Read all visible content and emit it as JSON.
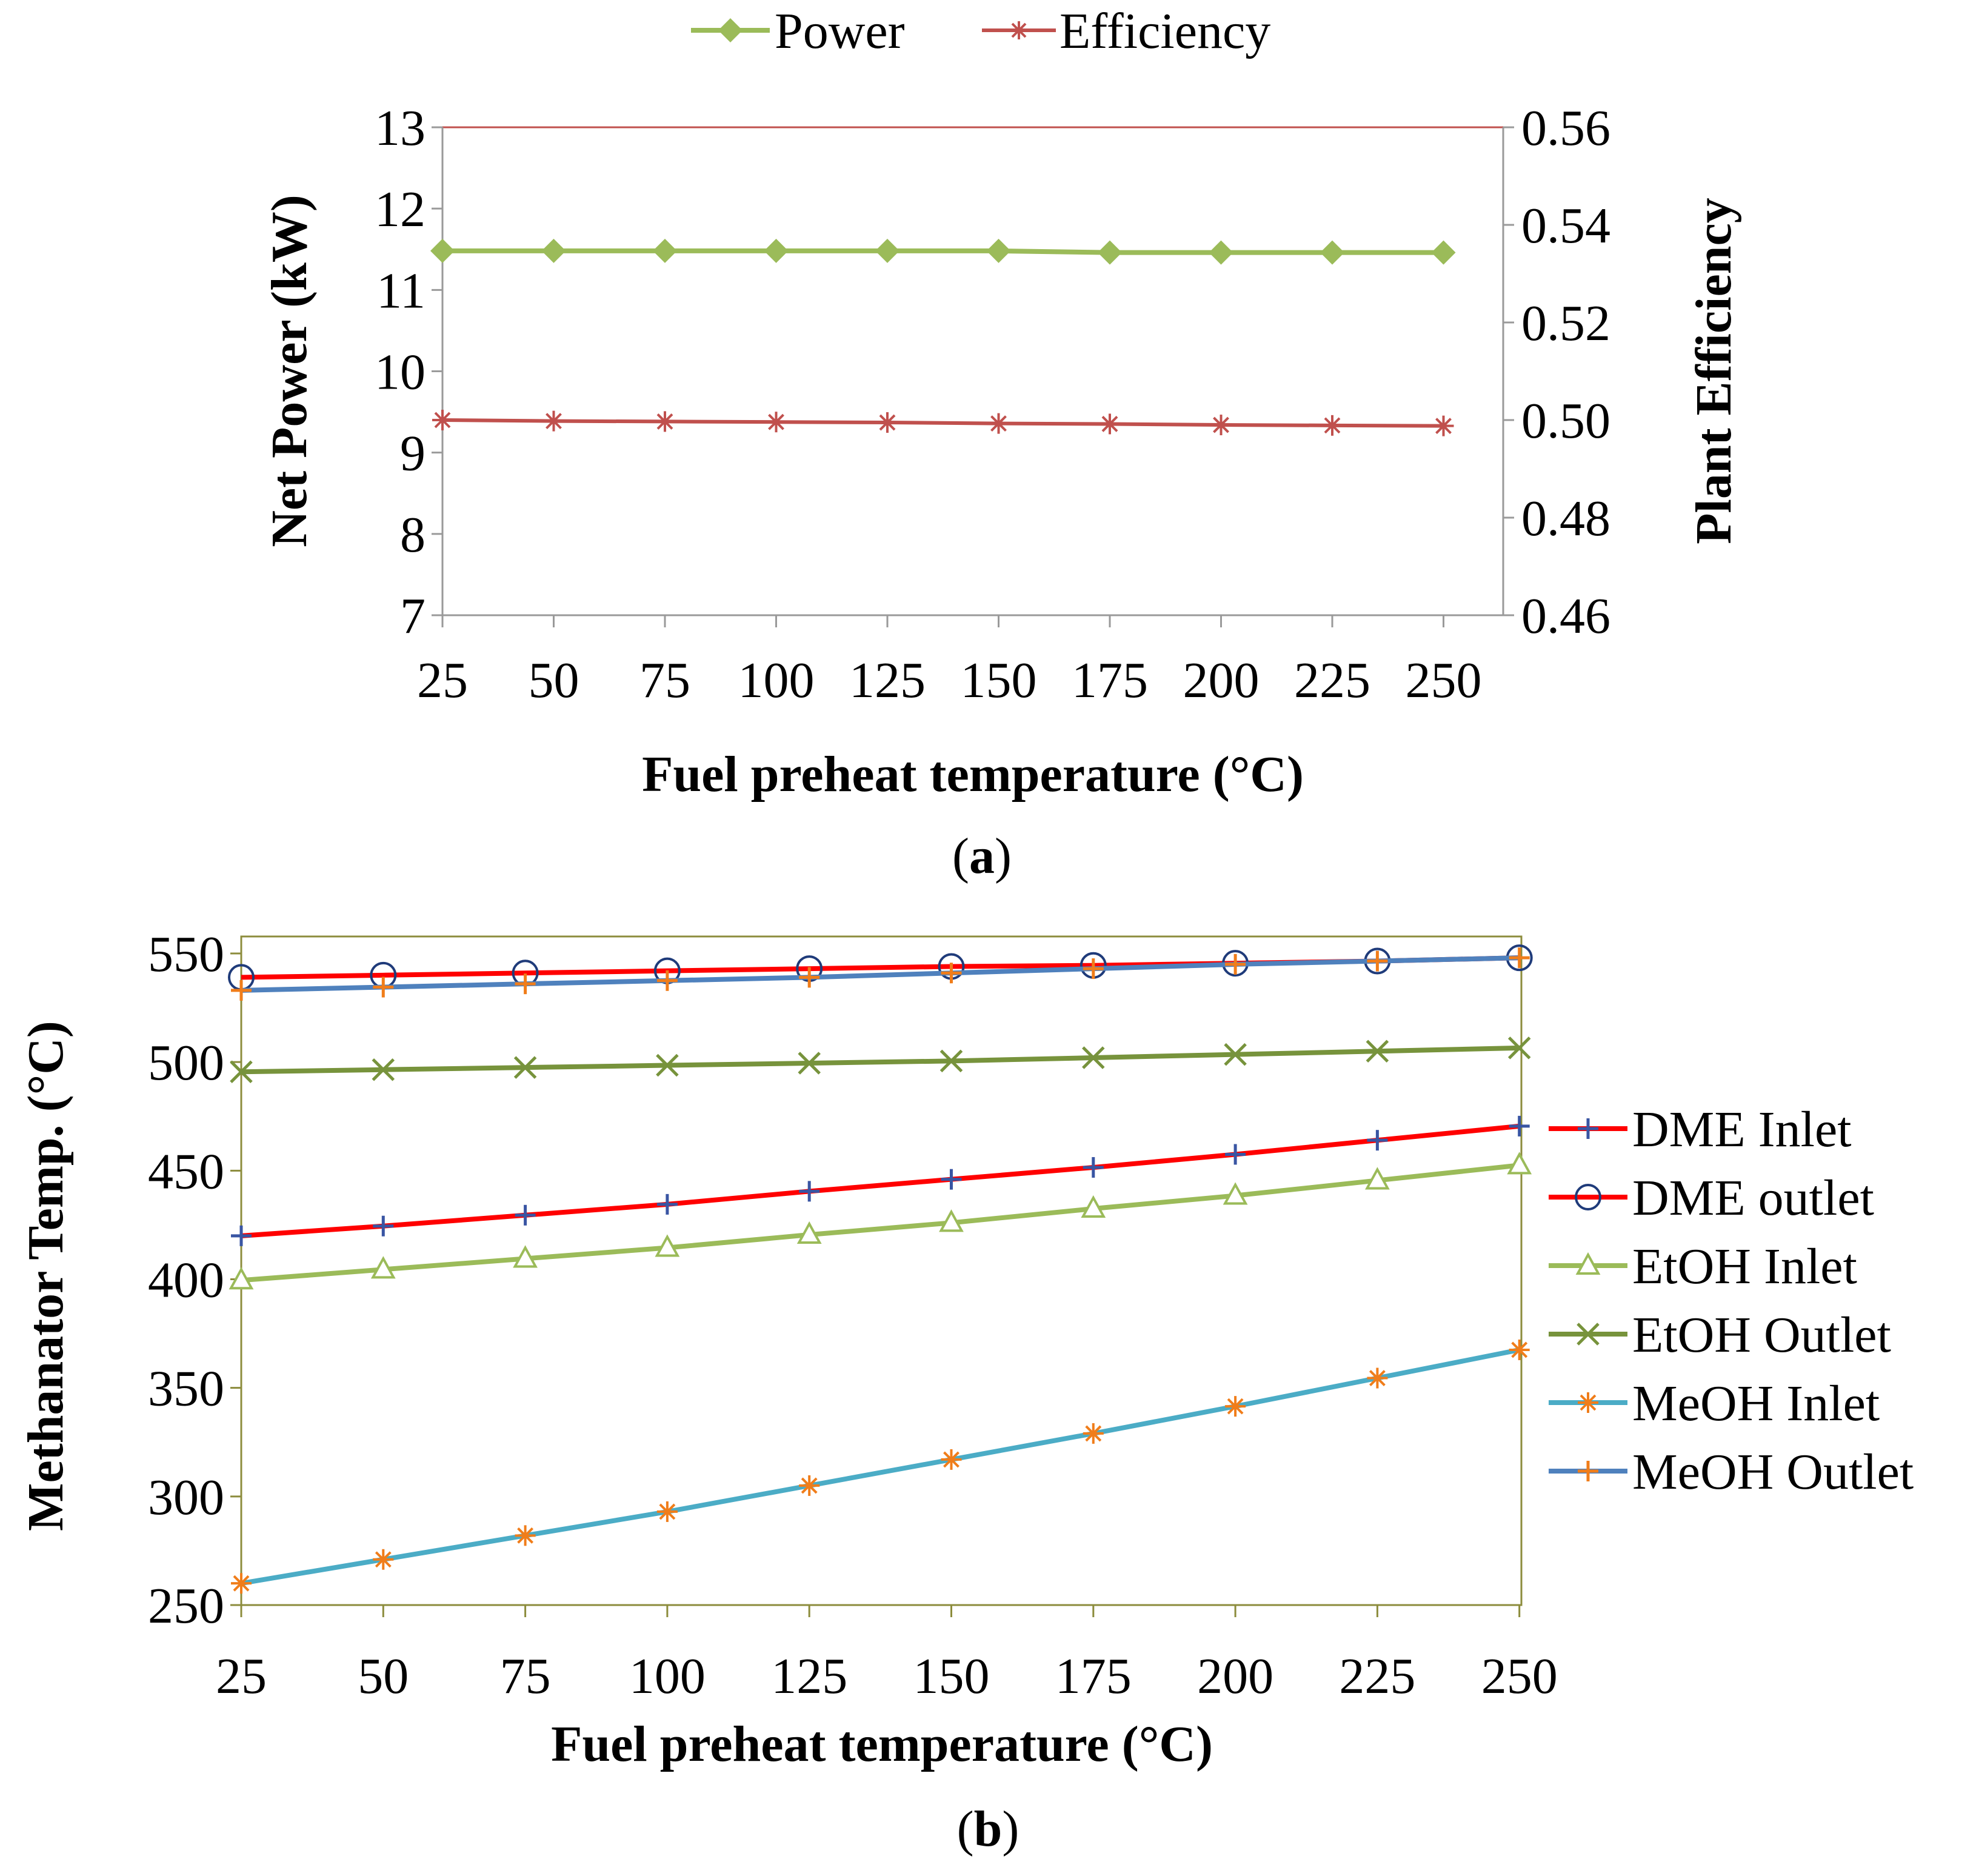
{
  "chart_data": [
    {
      "type": "line",
      "panel_label": "a",
      "x": [
        25,
        50,
        75,
        100,
        125,
        150,
        175,
        200,
        225,
        250
      ],
      "xlabel": "Fuel preheat temperature (°C)",
      "ylabel": "Net  Power  (kW)",
      "y2label": "Plant Efficiency",
      "ylim": [
        7,
        13
      ],
      "y2lim": [
        0.46,
        0.56
      ],
      "yticks": [
        "7",
        "8",
        "9",
        "10",
        "11",
        "12",
        "13"
      ],
      "y2ticks": [
        "0.46",
        "0.48",
        "0.50",
        "0.52",
        "0.54",
        "0.56"
      ],
      "legend_position": "top",
      "series": [
        {
          "name": "Power",
          "axis": "left",
          "marker": "diamond",
          "color": "#9bbb59",
          "values": [
            11.48,
            11.48,
            11.48,
            11.48,
            11.48,
            11.48,
            11.46,
            11.46,
            11.46,
            11.46
          ]
        },
        {
          "name": "Efficiency",
          "axis": "right",
          "marker": "asterisk",
          "color": "#c0504d",
          "values": [
            0.5,
            0.4998,
            0.4997,
            0.4996,
            0.4995,
            0.4993,
            0.4992,
            0.499,
            0.4989,
            0.4988
          ]
        }
      ]
    },
    {
      "type": "line",
      "panel_label": "b",
      "x": [
        25,
        50,
        75,
        100,
        125,
        150,
        175,
        200,
        225,
        250
      ],
      "xlabel": "Fuel preheat temperature (°C)",
      "ylabel": "Methanator Temp. (°C)",
      "ylim": [
        250,
        550
      ],
      "yticks": [
        "250",
        "300",
        "350",
        "400",
        "450",
        "500",
        "550"
      ],
      "legend_position": "right",
      "series": [
        {
          "name": "DME Inlet",
          "marker": "plus",
          "color": "#ff0000",
          "marker_color": "#3955a3",
          "values": [
            420,
            424.5,
            429.5,
            434.5,
            440.5,
            446,
            451.5,
            457.5,
            464,
            470.5
          ]
        },
        {
          "name": "DME outlet",
          "marker": "circle",
          "color": "#ff0000",
          "marker_color": "#1f3b7a",
          "values": [
            539,
            540,
            541,
            542,
            543,
            544,
            544.5,
            545.5,
            546.5,
            548
          ]
        },
        {
          "name": "EtOH Inlet",
          "marker": "triangle",
          "color": "#9bbb59",
          "marker_color": "#9bbb59",
          "values": [
            399.5,
            404.5,
            409.5,
            414.5,
            420.5,
            426,
            432.5,
            438.5,
            445.5,
            452.5
          ]
        },
        {
          "name": "EtOH Outlet",
          "marker": "x",
          "color": "#77933c",
          "marker_color": "#77933c",
          "values": [
            495.5,
            496.5,
            497.5,
            498.5,
            499.5,
            500.5,
            502,
            503.5,
            505,
            506.5
          ]
        },
        {
          "name": "MeOH Inlet",
          "marker": "asterisk",
          "color": "#4bacc6",
          "marker_color": "#f07d1a",
          "values": [
            260,
            271,
            282,
            293,
            305,
            317,
            329,
            341.5,
            354.5,
            367.5
          ]
        },
        {
          "name": "MeOH Outlet",
          "marker": "plus",
          "color": "#4f81bd",
          "marker_color": "#f07d1a",
          "values": [
            533,
            534.5,
            536,
            537.5,
            539,
            541,
            543,
            545,
            546.5,
            548
          ]
        }
      ]
    }
  ]
}
